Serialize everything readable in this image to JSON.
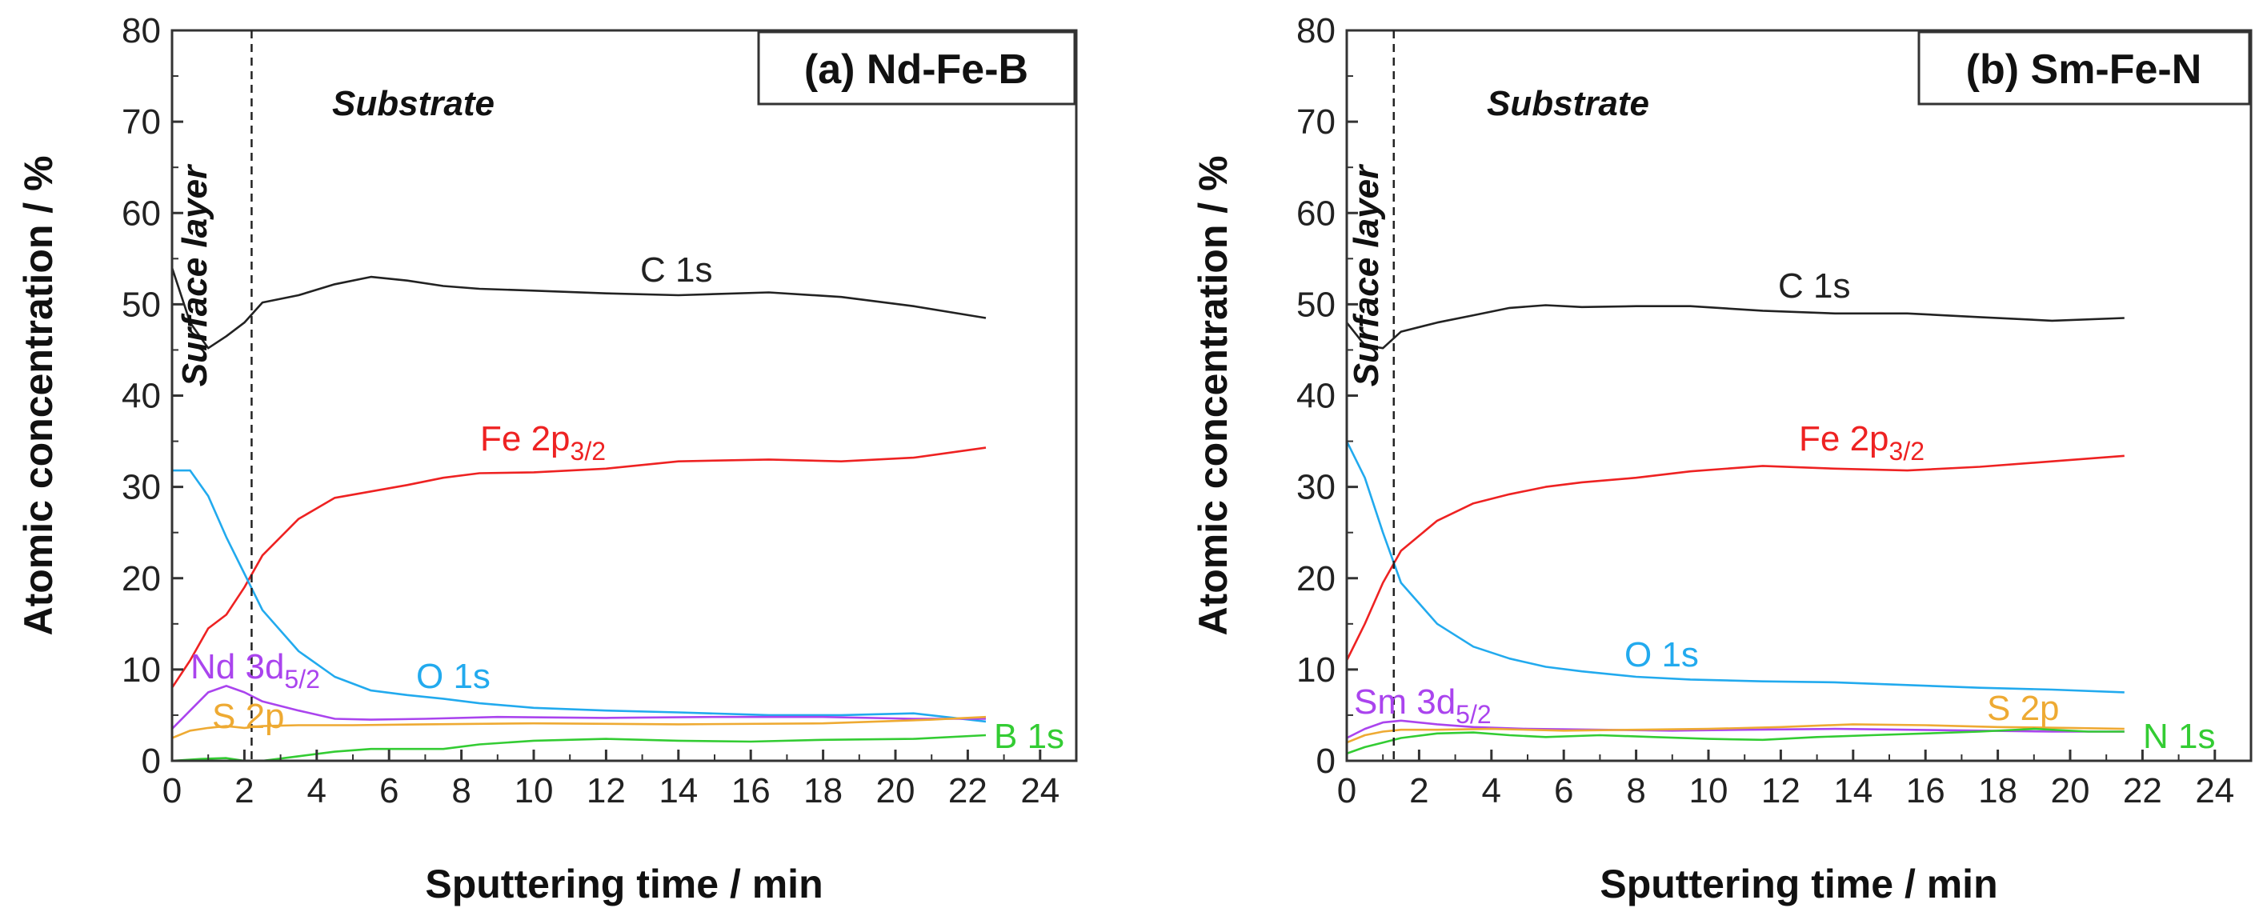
{
  "chart_data": [
    {
      "type": "line",
      "title": "(a) Nd-Fe-B",
      "xlabel": "Sputtering time / min",
      "ylabel": "Atomic concentration / %",
      "xlim": [
        0,
        25
      ],
      "ylim": [
        0,
        80
      ],
      "xticks": [
        "0",
        "2",
        "4",
        "6",
        "8",
        "10",
        "12",
        "14",
        "16",
        "18",
        "20",
        "22",
        "24"
      ],
      "yticks": [
        "0",
        "10",
        "20",
        "30",
        "40",
        "50",
        "60",
        "70",
        "80"
      ],
      "divider_x": 2.2,
      "region_labels": {
        "surface": "Surface layer",
        "substrate": "Substrate"
      },
      "series": [
        {
          "name": "C 1s",
          "label_main": "C 1s",
          "label_sub": "",
          "color": "#222222",
          "points": [
            [
              0,
              54
            ],
            [
              0.5,
              48
            ],
            [
              1,
              45.2
            ],
            [
              1.5,
              46.5
            ],
            [
              2,
              48
            ],
            [
              2.5,
              50.2
            ],
            [
              3.5,
              51
            ],
            [
              4.5,
              52.2
            ],
            [
              5.5,
              53
            ],
            [
              6.5,
              52.6
            ],
            [
              7.5,
              52
            ],
            [
              8.5,
              51.7
            ],
            [
              10,
              51.5
            ],
            [
              12,
              51.2
            ],
            [
              14,
              51
            ],
            [
              16.5,
              51.3
            ],
            [
              18.5,
              50.8
            ],
            [
              20.5,
              49.8
            ],
            [
              22.5,
              48.5
            ]
          ]
        },
        {
          "name": "Fe 2p3/2",
          "label_main": "Fe 2p",
          "label_sub": "3/2",
          "color": "#ee2222",
          "points": [
            [
              0,
              8
            ],
            [
              0.5,
              11
            ],
            [
              1,
              14.5
            ],
            [
              1.5,
              16
            ],
            [
              2,
              19
            ],
            [
              2.5,
              22.5
            ],
            [
              3.5,
              26.5
            ],
            [
              4.5,
              28.8
            ],
            [
              5.5,
              29.5
            ],
            [
              6.5,
              30.2
            ],
            [
              7.5,
              31
            ],
            [
              8.5,
              31.5
            ],
            [
              10,
              31.6
            ],
            [
              12,
              32
            ],
            [
              14,
              32.8
            ],
            [
              16.5,
              33
            ],
            [
              18.5,
              32.8
            ],
            [
              20.5,
              33.2
            ],
            [
              22.5,
              34.3
            ]
          ]
        },
        {
          "name": "O 1s",
          "label_main": "O 1s",
          "label_sub": "",
          "color": "#22aaee",
          "points": [
            [
              0,
              31.8
            ],
            [
              0.5,
              31.8
            ],
            [
              1,
              29
            ],
            [
              1.5,
              24.5
            ],
            [
              2,
              20.5
            ],
            [
              2.5,
              16.5
            ],
            [
              3.5,
              12
            ],
            [
              4.5,
              9.2
            ],
            [
              5.5,
              7.7
            ],
            [
              6.5,
              7.2
            ],
            [
              7.5,
              6.8
            ],
            [
              8.5,
              6.3
            ],
            [
              10,
              5.8
            ],
            [
              12,
              5.5
            ],
            [
              14,
              5.3
            ],
            [
              16.5,
              5
            ],
            [
              18.5,
              5
            ],
            [
              20.5,
              5.2
            ],
            [
              22.5,
              4.3
            ]
          ]
        },
        {
          "name": "Nd 3d5/2",
          "label_main": "Nd 3d",
          "label_sub": "5/2",
          "color": "#aa44ee",
          "points": [
            [
              0,
              3.5
            ],
            [
              0.5,
              5.5
            ],
            [
              1,
              7.5
            ],
            [
              1.5,
              8.2
            ],
            [
              2,
              7.5
            ],
            [
              2.5,
              6.5
            ],
            [
              3.5,
              5.5
            ],
            [
              4.5,
              4.6
            ],
            [
              5.5,
              4.5
            ],
            [
              7,
              4.6
            ],
            [
              9,
              4.8
            ],
            [
              12,
              4.7
            ],
            [
              15,
              4.8
            ],
            [
              18,
              4.8
            ],
            [
              20.5,
              4.6
            ],
            [
              22.5,
              4.6
            ]
          ]
        },
        {
          "name": "S 2p",
          "label_main": "S 2p",
          "label_sub": "",
          "color": "#eeaa33",
          "points": [
            [
              0,
              2.5
            ],
            [
              0.5,
              3.3
            ],
            [
              1,
              3.6
            ],
            [
              1.5,
              3.8
            ],
            [
              2,
              3.6
            ],
            [
              2.5,
              3.8
            ],
            [
              3.5,
              3.9
            ],
            [
              5,
              3.9
            ],
            [
              7,
              4
            ],
            [
              10,
              4.1
            ],
            [
              14,
              4
            ],
            [
              18,
              4.1
            ],
            [
              21,
              4.5
            ],
            [
              22.5,
              4.8
            ]
          ]
        },
        {
          "name": "B 1s",
          "label_main": "B 1s",
          "label_sub": "",
          "color": "#33cc33",
          "points": [
            [
              0,
              0
            ],
            [
              0.8,
              0.2
            ],
            [
              1.5,
              0.3
            ],
            [
              2,
              0
            ],
            [
              2.5,
              0
            ],
            [
              3.5,
              0.5
            ],
            [
              4.5,
              1
            ],
            [
              5.5,
              1.3
            ],
            [
              7.5,
              1.3
            ],
            [
              8.5,
              1.8
            ],
            [
              10,
              2.2
            ],
            [
              12,
              2.4
            ],
            [
              14,
              2.2
            ],
            [
              16,
              2.1
            ],
            [
              18,
              2.3
            ],
            [
              20.5,
              2.4
            ],
            [
              22.5,
              2.8
            ]
          ]
        }
      ]
    },
    {
      "type": "line",
      "title": "(b) Sm-Fe-N",
      "xlabel": "Sputtering time / min",
      "ylabel": "Atomic concentration / %",
      "xlim": [
        0,
        25
      ],
      "ylim": [
        0,
        80
      ],
      "xticks": [
        "0",
        "2",
        "4",
        "6",
        "8",
        "10",
        "12",
        "14",
        "16",
        "18",
        "20",
        "22",
        "24"
      ],
      "yticks": [
        "0",
        "10",
        "20",
        "30",
        "40",
        "50",
        "60",
        "70",
        "80"
      ],
      "divider_x": 1.3,
      "region_labels": {
        "surface": "Surface layer",
        "substrate": "Substrate"
      },
      "series": [
        {
          "name": "C 1s",
          "label_main": "C 1s",
          "label_sub": "",
          "color": "#222222",
          "points": [
            [
              0,
              48
            ],
            [
              0.5,
              45.5
            ],
            [
              1,
              45.2
            ],
            [
              1.5,
              47
            ],
            [
              2.5,
              48
            ],
            [
              3.5,
              48.8
            ],
            [
              4.5,
              49.6
            ],
            [
              5.5,
              49.9
            ],
            [
              6.5,
              49.7
            ],
            [
              8,
              49.8
            ],
            [
              9.5,
              49.8
            ],
            [
              11.5,
              49.3
            ],
            [
              13.5,
              49
            ],
            [
              15.5,
              49
            ],
            [
              17.5,
              48.6
            ],
            [
              19.5,
              48.2
            ],
            [
              21.5,
              48.5
            ]
          ]
        },
        {
          "name": "Fe 2p3/2",
          "label_main": "Fe 2p",
          "label_sub": "3/2",
          "color": "#ee2222",
          "points": [
            [
              0,
              11
            ],
            [
              0.5,
              15
            ],
            [
              1,
              19.5
            ],
            [
              1.5,
              23
            ],
            [
              2.5,
              26.3
            ],
            [
              3.5,
              28.2
            ],
            [
              4.5,
              29.2
            ],
            [
              5.5,
              30
            ],
            [
              6.5,
              30.5
            ],
            [
              8,
              31
            ],
            [
              9.5,
              31.7
            ],
            [
              11.5,
              32.3
            ],
            [
              13.5,
              32
            ],
            [
              15.5,
              31.8
            ],
            [
              17.5,
              32.2
            ],
            [
              19.5,
              32.8
            ],
            [
              21.5,
              33.4
            ]
          ]
        },
        {
          "name": "O 1s",
          "label_main": "O 1s",
          "label_sub": "",
          "color": "#22aaee",
          "points": [
            [
              0,
              35
            ],
            [
              0.5,
              31
            ],
            [
              1,
              25
            ],
            [
              1.5,
              19.5
            ],
            [
              2.5,
              15
            ],
            [
              3.5,
              12.5
            ],
            [
              4.5,
              11.2
            ],
            [
              5.5,
              10.3
            ],
            [
              6.5,
              9.8
            ],
            [
              8,
              9.2
            ],
            [
              9.5,
              8.9
            ],
            [
              11.5,
              8.7
            ],
            [
              13.5,
              8.6
            ],
            [
              15.5,
              8.3
            ],
            [
              17.5,
              8
            ],
            [
              19.5,
              7.8
            ],
            [
              21.5,
              7.5
            ]
          ]
        },
        {
          "name": "Sm 3d5/2",
          "label_main": "Sm 3d",
          "label_sub": "5/2",
          "color": "#aa44ee",
          "points": [
            [
              0,
              2.5
            ],
            [
              0.5,
              3.5
            ],
            [
              1,
              4.2
            ],
            [
              1.5,
              4.4
            ],
            [
              2.5,
              4
            ],
            [
              3.5,
              3.7
            ],
            [
              5,
              3.5
            ],
            [
              7,
              3.4
            ],
            [
              9,
              3.3
            ],
            [
              11,
              3.4
            ],
            [
              13.5,
              3.5
            ],
            [
              15.5,
              3.4
            ],
            [
              17.5,
              3.3
            ],
            [
              19.5,
              3.2
            ],
            [
              21.5,
              3.2
            ]
          ]
        },
        {
          "name": "S 2p",
          "label_main": "S 2p",
          "label_sub": "",
          "color": "#eeaa33",
          "points": [
            [
              0,
              2
            ],
            [
              0.5,
              2.8
            ],
            [
              1,
              3.2
            ],
            [
              1.5,
              3.4
            ],
            [
              2.5,
              3.4
            ],
            [
              4,
              3.5
            ],
            [
              6,
              3.3
            ],
            [
              8,
              3.4
            ],
            [
              10,
              3.5
            ],
            [
              12,
              3.7
            ],
            [
              14,
              4
            ],
            [
              16,
              3.9
            ],
            [
              18,
              3.7
            ],
            [
              20,
              3.6
            ],
            [
              21.5,
              3.5
            ]
          ]
        },
        {
          "name": "N 1s",
          "label_main": "N 1s",
          "label_sub": "",
          "color": "#33cc33",
          "points": [
            [
              0,
              0.8
            ],
            [
              0.5,
              1.5
            ],
            [
              1,
              2
            ],
            [
              1.5,
              2.5
            ],
            [
              2.5,
              3
            ],
            [
              3.5,
              3.1
            ],
            [
              4.5,
              2.8
            ],
            [
              5.5,
              2.6
            ],
            [
              7,
              2.8
            ],
            [
              8.5,
              2.6
            ],
            [
              10,
              2.4
            ],
            [
              11.5,
              2.3
            ],
            [
              13,
              2.6
            ],
            [
              14.5,
              2.8
            ],
            [
              16,
              3
            ],
            [
              17.5,
              3.2
            ],
            [
              19,
              3.5
            ],
            [
              20.5,
              3.2
            ],
            [
              21.5,
              3.2
            ]
          ]
        }
      ]
    }
  ]
}
